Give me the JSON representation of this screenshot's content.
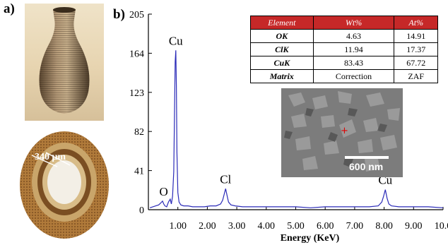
{
  "panels": {
    "a_label": "a)",
    "b_label": "b)"
  },
  "photo_a": {
    "ring_annotation": "340 μm"
  },
  "chart_data": {
    "type": "line",
    "xlabel": "Energy (KeV)",
    "ylabel": "",
    "xlim": [
      0,
      10.0
    ],
    "ylim": [
      0,
      205
    ],
    "x_ticks": [
      1.0,
      2.0,
      3.0,
      4.0,
      5.0,
      6.0,
      7.0,
      8.0,
      9.0,
      10.0
    ],
    "x_tick_labels": [
      "1.00",
      "2.00",
      "3.00",
      "4.00",
      "5.00",
      "6.00",
      "7.00",
      "8.00",
      "9.00",
      "10.0"
    ],
    "y_ticks": [
      0,
      41,
      82,
      123,
      164,
      205
    ],
    "y_tick_labels": [
      "0",
      "41",
      "82",
      "123",
      "164",
      "205"
    ],
    "line_color": "#2b2bb8",
    "peaks": [
      {
        "label": "O",
        "x": 0.52,
        "y": 9
      },
      {
        "label": "Cu",
        "x": 0.93,
        "y": 167
      },
      {
        "label": "Cl",
        "x": 2.62,
        "y": 22
      },
      {
        "label": "Cu",
        "x": 8.04,
        "y": 21
      }
    ],
    "series": [
      {
        "x": [
          0.05,
          0.15,
          0.25,
          0.35,
          0.42,
          0.48,
          0.52,
          0.56,
          0.62,
          0.68,
          0.74,
          0.78,
          0.82,
          0.86,
          0.89,
          0.91,
          0.93,
          0.95,
          0.97,
          1.0,
          1.04,
          1.1,
          1.2,
          1.35,
          1.5,
          1.7,
          1.9,
          2.1,
          2.3,
          2.45,
          2.52,
          2.57,
          2.62,
          2.67,
          2.72,
          2.8,
          2.95,
          3.2,
          3.5,
          4.0,
          4.5,
          5.0,
          5.5,
          6.0,
          6.5,
          7.0,
          7.5,
          7.8,
          7.92,
          7.98,
          8.04,
          8.1,
          8.16,
          8.25,
          8.5,
          9.0,
          9.5,
          10.0
        ],
        "y": [
          2,
          3,
          4,
          5,
          7,
          9,
          6,
          4,
          3,
          8,
          11,
          6,
          14,
          40,
          110,
          155,
          167,
          130,
          60,
          18,
          8,
          5,
          4,
          4,
          3,
          3,
          3,
          4,
          4,
          6,
          10,
          16,
          22,
          15,
          8,
          5,
          4,
          3,
          3,
          3,
          3,
          3,
          2,
          3,
          3,
          3,
          3,
          4,
          8,
          14,
          21,
          12,
          6,
          4,
          3,
          3,
          3,
          2
        ]
      }
    ]
  },
  "composition_table": {
    "headers": [
      "Element",
      "Wt%",
      "At%"
    ],
    "rows": [
      [
        "OK",
        "4.63",
        "14.91"
      ],
      [
        "ClK",
        "11.94",
        "17.37"
      ],
      [
        "CuK",
        "83.43",
        "67.72"
      ],
      [
        "Matrix",
        "Correction",
        "ZAF"
      ]
    ],
    "header_color": "#c62828"
  },
  "sem_inset": {
    "scale_label": "600 nm",
    "marker_color": "#e00000"
  }
}
